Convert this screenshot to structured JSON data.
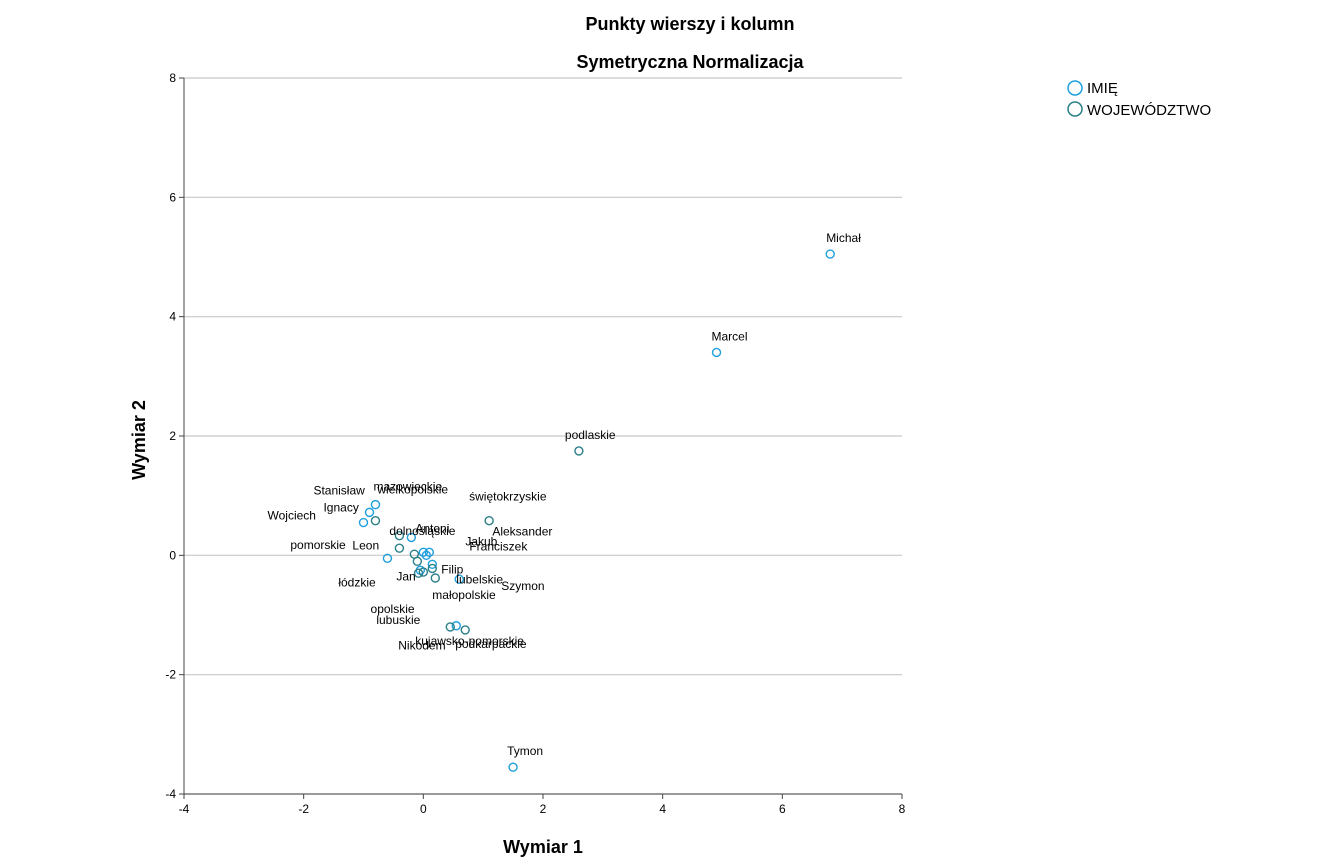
{
  "chart_data": {
    "type": "scatter",
    "title": "Punkty wierszy i kolumn",
    "subtitle": "Symetryczna Normalizacja",
    "xlabel": "Wymiar 1",
    "ylabel": "Wymiar 2",
    "xlim": [
      -4,
      8
    ],
    "ylim": [
      -4,
      8
    ],
    "xticks": [
      "-4",
      "-2",
      "0",
      "2",
      "4",
      "6",
      "8"
    ],
    "yticks": [
      "-4",
      "-2",
      "0",
      "2",
      "4",
      "6",
      "8"
    ],
    "grid": "horizontal",
    "legend_position": "top-right",
    "series": [
      {
        "name": "IMIĘ",
        "color": "#1f9fde",
        "points": [
          {
            "label": "Michał",
            "x": 6.8,
            "y": 5.05
          },
          {
            "label": "Marcel",
            "x": 4.9,
            "y": 3.4
          },
          {
            "label": "Tymon",
            "x": 1.5,
            "y": -3.55
          },
          {
            "label": "Wojciech",
            "x": -1.0,
            "y": 0.55
          },
          {
            "label": "Ignacy",
            "x": -0.9,
            "y": 0.72
          },
          {
            "label": "Stanisław",
            "x": -0.8,
            "y": 0.85
          },
          {
            "label": "Antoni",
            "x": -0.2,
            "y": 0.3
          },
          {
            "label": "Leon",
            "x": -0.6,
            "y": -0.05
          },
          {
            "label": "Jakub",
            "x": 0.1,
            "y": 0.05
          },
          {
            "label": "Franciszek",
            "x": 0.05,
            "y": 0.0
          },
          {
            "label": "Aleksander",
            "x": 0.0,
            "y": 0.05
          },
          {
            "label": "Jan",
            "x": -0.05,
            "y": -0.25
          },
          {
            "label": "Filip",
            "x": 0.15,
            "y": -0.15
          },
          {
            "label": "Szymon",
            "x": 0.6,
            "y": -0.4
          },
          {
            "label": "Nikodem",
            "x": 0.55,
            "y": -1.18
          }
        ]
      },
      {
        "name": "WOJEWÓDZTWO",
        "color": "#2a7f88",
        "points": [
          {
            "label": "podlaskie",
            "x": 2.6,
            "y": 1.75
          },
          {
            "label": "świętokrzyskie",
            "x": 1.1,
            "y": 0.58
          },
          {
            "label": "mazowieckie",
            "x": -0.8,
            "y": 0.58
          },
          {
            "label": "wielkopolskie",
            "x": -0.4,
            "y": 0.33
          },
          {
            "label": "dolnośląskie",
            "x": -0.4,
            "y": 0.12
          },
          {
            "label": "pomorskie",
            "x": -0.15,
            "y": 0.02
          },
          {
            "label": "łódzkie",
            "x": -0.1,
            "y": -0.1
          },
          {
            "label": "opolskie",
            "x": -0.08,
            "y": -0.3
          },
          {
            "label": "lubuskie",
            "x": 0.0,
            "y": -0.28
          },
          {
            "label": "lubelskie",
            "x": 0.15,
            "y": -0.22
          },
          {
            "label": "małopolskie",
            "x": 0.2,
            "y": -0.38
          },
          {
            "label": "kujawsko-pomorskie",
            "x": 0.45,
            "y": -1.2
          },
          {
            "label": "podkarpackie",
            "x": 0.7,
            "y": -1.25
          }
        ]
      }
    ]
  }
}
